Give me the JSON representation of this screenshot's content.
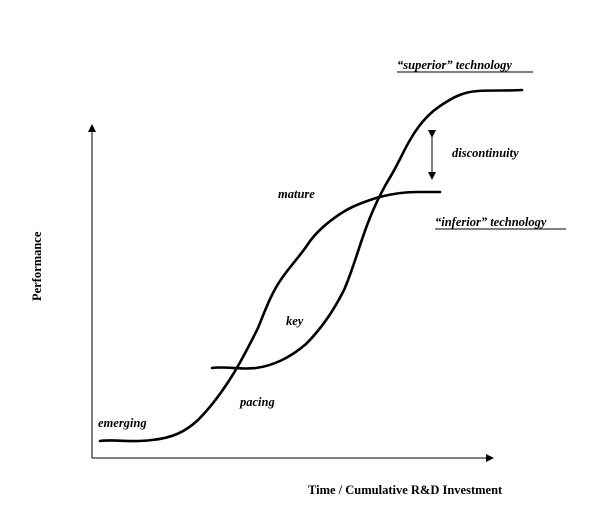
{
  "diagram": {
    "axes": {
      "x_label": "Time / Cumulative R&D Investment",
      "y_label": "Performance"
    },
    "curves": {
      "superior": "“superior” technology",
      "inferior": "“inferior” technology"
    },
    "stages": {
      "emerging": "emerging",
      "pacing": "pacing",
      "key": "key",
      "mature": "mature"
    },
    "gap": {
      "label": "discontinuity"
    }
  }
}
